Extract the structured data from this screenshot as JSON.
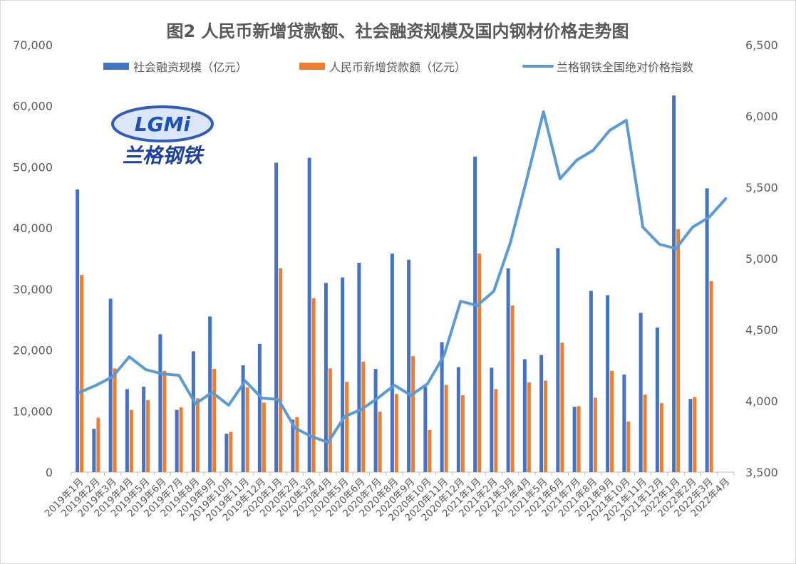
{
  "chart_data": {
    "type": "bar",
    "title": "图2 人民币新增贷款额、社会融资规模及国内钢材价格走势图",
    "categories": [
      "2019年1月",
      "2019年2月",
      "2019年3月",
      "2019年4月",
      "2019年5月",
      "2019年6月",
      "2019年7月",
      "2019年8月",
      "2019年9月",
      "2019年10月",
      "2019年11月",
      "2019年12月",
      "2020年1月",
      "2020年2月",
      "2020年3月",
      "2020年4月",
      "2020年5月",
      "2020年6月",
      "2020年7月",
      "2020年8月",
      "2020年9月",
      "2020年10月",
      "2020年11月",
      "2020年12月",
      "2021年1月",
      "2021年2月",
      "2021年3月",
      "2021年4月",
      "2021年5月",
      "2021年6月",
      "2021年7月",
      "2021年8月",
      "2021年9月",
      "2021年10月",
      "2021年11月",
      "2021年12月",
      "2022年1月",
      "2022年2月",
      "2022年3月",
      "2022年4月"
    ],
    "series": [
      {
        "name": "社会融资规模（亿元）",
        "type": "bar",
        "axis": "left",
        "color": "#4472c4",
        "values": [
          46300,
          7100,
          28400,
          13600,
          14000,
          22600,
          10200,
          19800,
          25500,
          6300,
          17500,
          21000,
          50700,
          8600,
          51500,
          31000,
          31900,
          34300,
          16900,
          35800,
          34800,
          14000,
          21300,
          17200,
          51700,
          17100,
          33400,
          18500,
          19200,
          36700,
          10700,
          29700,
          29000,
          16000,
          26100,
          23700,
          61700,
          12000,
          46500,
          null
        ]
      },
      {
        "name": "人民币新增贷款额（亿元）",
        "type": "bar",
        "axis": "left",
        "color": "#ed7d31",
        "values": [
          32300,
          8900,
          17000,
          10200,
          11800,
          16600,
          10600,
          12100,
          16900,
          6600,
          13900,
          11400,
          33400,
          9000,
          28500,
          17000,
          14800,
          18100,
          9900,
          12800,
          19000,
          6900,
          14300,
          12600,
          35800,
          13600,
          27300,
          14700,
          15000,
          21200,
          10800,
          12200,
          16600,
          8300,
          12700,
          11300,
          39800,
          12300,
          31300,
          null
        ]
      },
      {
        "name": "兰格钢铁全国绝对价格指数",
        "type": "line",
        "axis": "right",
        "color": "#5b9bd5",
        "values": [
          4060,
          4110,
          4170,
          4310,
          4220,
          4190,
          4180,
          3980,
          4060,
          3970,
          4140,
          4020,
          4010,
          3810,
          3750,
          3710,
          3890,
          3940,
          4020,
          4110,
          4040,
          4120,
          4320,
          4700,
          4670,
          4770,
          5110,
          5560,
          6030,
          5560,
          5690,
          5760,
          5900,
          5970,
          5220,
          5100,
          5070,
          5220,
          5290,
          5420
        ]
      }
    ],
    "ylim": [
      0,
      70000
    ],
    "yticks": [
      "0",
      "10,000",
      "20,000",
      "30,000",
      "40,000",
      "50,000",
      "60,000",
      "70,000"
    ],
    "y2lim": [
      3500,
      6500
    ],
    "y2ticks": [
      "3,500",
      "4,000",
      "4,500",
      "5,000",
      "5,500",
      "6,000",
      "6,500"
    ],
    "legend_position": "top",
    "grid": false
  },
  "logo": {
    "mark": "LGMi",
    "text": "兰格钢铁"
  }
}
